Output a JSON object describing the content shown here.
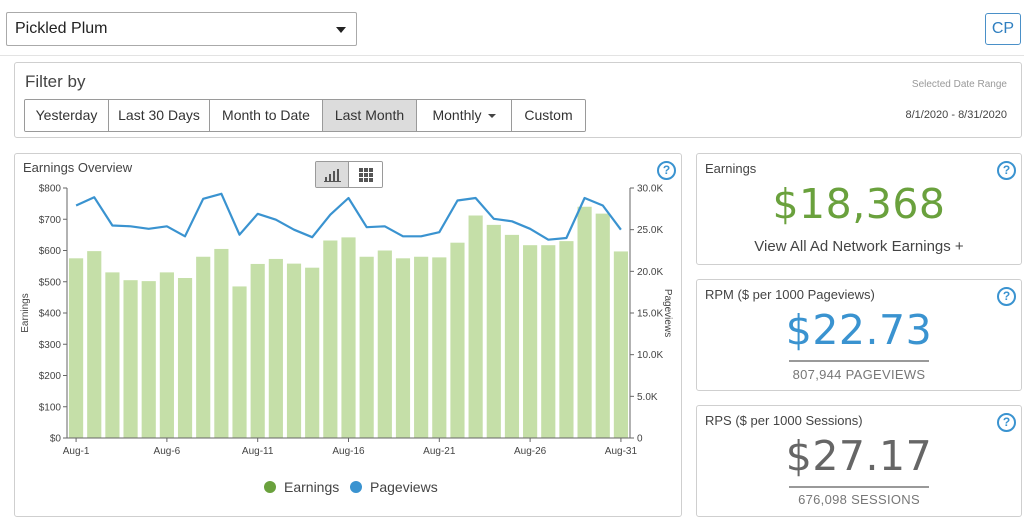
{
  "header": {
    "site_select": "Pickled Plum",
    "avatar": "CP"
  },
  "filter": {
    "title": "Filter by",
    "buttons": [
      {
        "label": "Yesterday"
      },
      {
        "label": "Last 30 Days"
      },
      {
        "label": "Month to Date"
      },
      {
        "label": "Last Month",
        "active": true
      },
      {
        "label": "Monthly",
        "dropdown": true
      },
      {
        "label": "Custom"
      }
    ],
    "range_label": "Selected Date Range",
    "range_value": "8/1/2020 - 8/31/2020"
  },
  "chart_panel": {
    "title": "Earnings Overview",
    "toggle_icons": [
      "bar-chart-icon",
      "grid-icon"
    ],
    "help": "?"
  },
  "chart_data": {
    "type": "bar",
    "x": [
      "Aug-1",
      "Aug-2",
      "Aug-3",
      "Aug-4",
      "Aug-5",
      "Aug-6",
      "Aug-7",
      "Aug-8",
      "Aug-9",
      "Aug-10",
      "Aug-11",
      "Aug-12",
      "Aug-13",
      "Aug-14",
      "Aug-15",
      "Aug-16",
      "Aug-17",
      "Aug-18",
      "Aug-19",
      "Aug-20",
      "Aug-21",
      "Aug-22",
      "Aug-23",
      "Aug-24",
      "Aug-25",
      "Aug-26",
      "Aug-27",
      "Aug-28",
      "Aug-29",
      "Aug-30",
      "Aug-31"
    ],
    "x_tick_labels": [
      "Aug-1",
      "Aug-6",
      "Aug-11",
      "Aug-16",
      "Aug-21",
      "Aug-26",
      "Aug-31"
    ],
    "series": [
      {
        "name": "Earnings",
        "type": "bar",
        "axis": "left",
        "color": "#c5dfa8",
        "values": [
          575,
          598,
          530,
          505,
          502,
          530,
          512,
          580,
          605,
          485,
          557,
          573,
          558,
          545,
          632,
          642,
          580,
          600,
          575,
          580,
          578,
          625,
          712,
          682,
          650,
          617,
          617,
          630,
          740,
          718,
          597
        ]
      },
      {
        "name": "Pageviews",
        "type": "line",
        "axis": "right",
        "color": "#3a93d0",
        "values": [
          27900,
          28900,
          25500,
          25400,
          25100,
          25400,
          24200,
          28700,
          29300,
          24400,
          26900,
          26200,
          25000,
          24100,
          26800,
          28800,
          25300,
          25400,
          24200,
          24200,
          24700,
          28500,
          28800,
          26300,
          26000,
          25100,
          23800,
          24000,
          28800,
          27900,
          25000
        ]
      }
    ],
    "y_left": {
      "label": "Earnings",
      "ticks": [
        "$0",
        "$100",
        "$200",
        "$300",
        "$400",
        "$500",
        "$600",
        "$700",
        "$800"
      ],
      "ylim": [
        0,
        800
      ]
    },
    "y_right": {
      "label": "Pageviews",
      "ticks": [
        "0",
        "5.0K",
        "10.0K",
        "15.0K",
        "20.0K",
        "25.0K",
        "30.0K"
      ],
      "ylim": [
        0,
        30000
      ]
    },
    "grid": false,
    "legend": "bottom"
  },
  "cards": {
    "earnings": {
      "title": "Earnings",
      "value": "$18,368",
      "link": "View All Ad Network Earnings +",
      "help": "?"
    },
    "rpm": {
      "title": "RPM ($ per 1000 Pageviews)",
      "value": "$22.73",
      "sub": "807,944 PAGEVIEWS",
      "help": "?"
    },
    "rps": {
      "title": "RPS ($ per 1000 Sessions)",
      "value": "$27.17",
      "sub": "676,098 SESSIONS",
      "help": "?"
    }
  }
}
